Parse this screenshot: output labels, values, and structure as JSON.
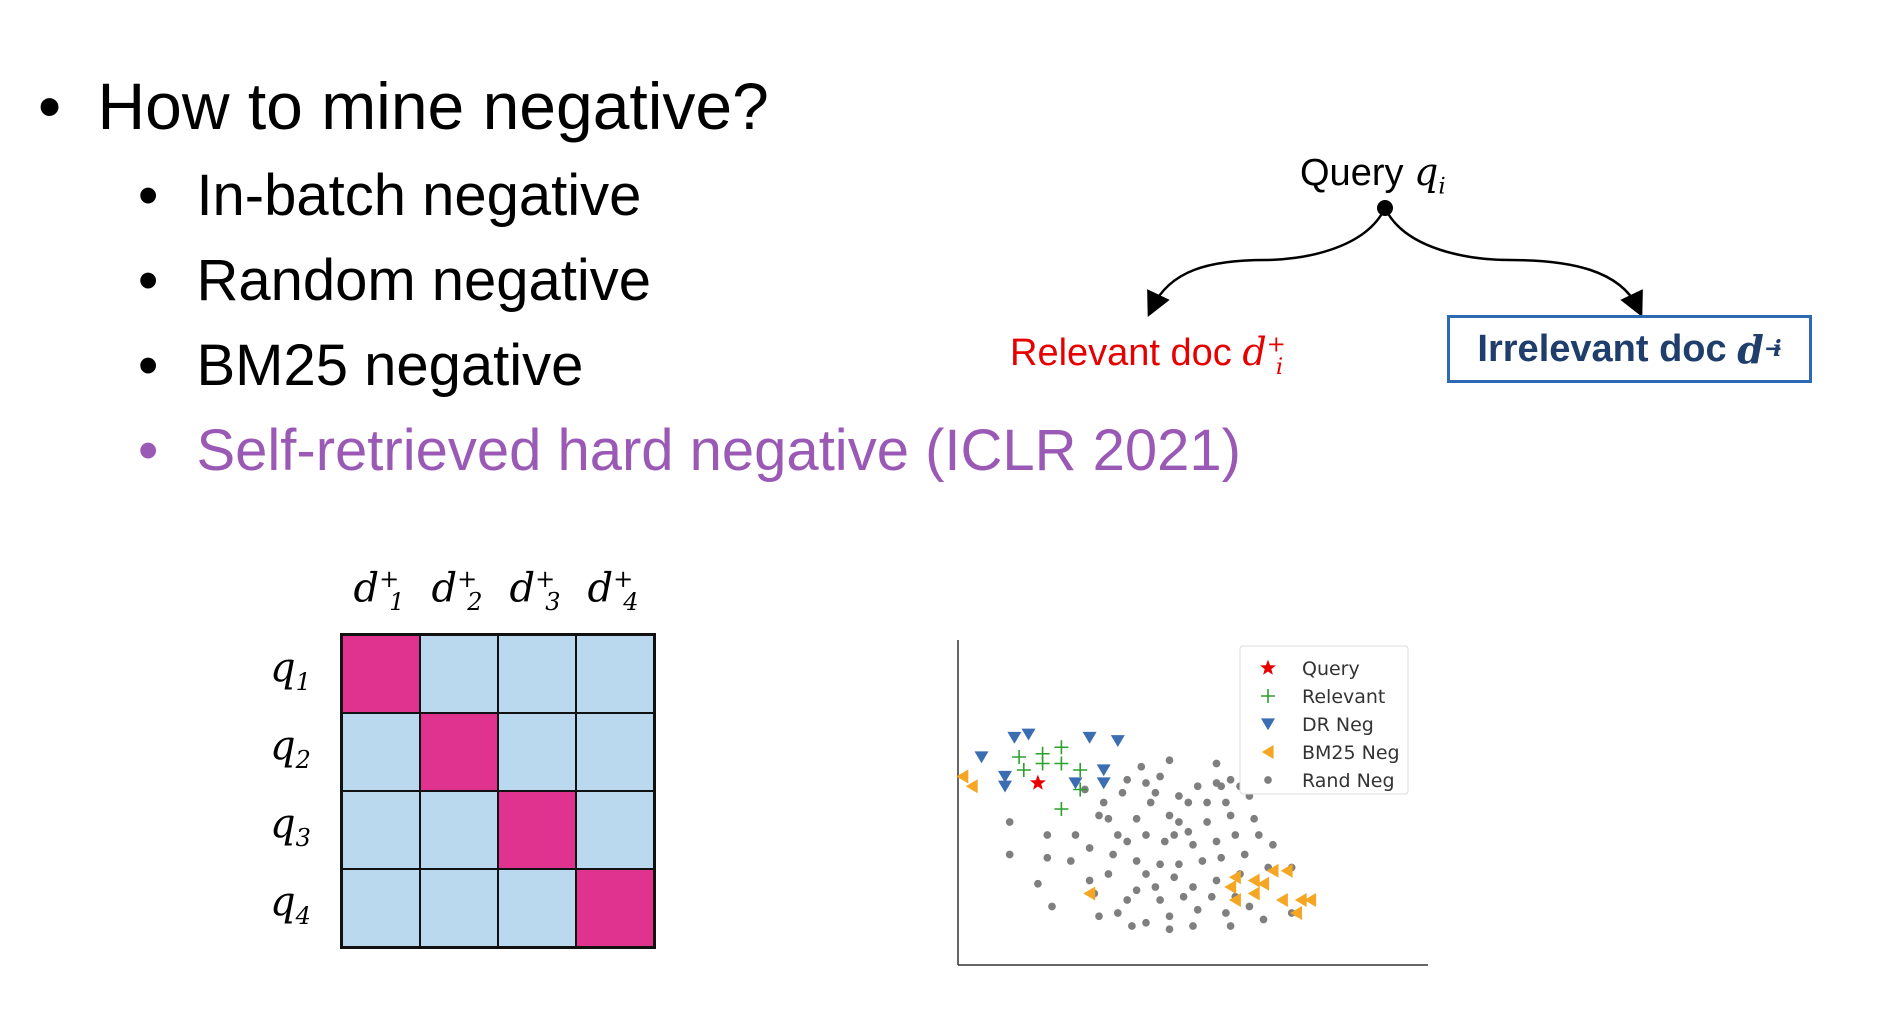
{
  "bullets": {
    "marker": "•",
    "main": "How to mine negative?",
    "sub": [
      {
        "text": "In-batch negative"
      },
      {
        "text": "Random negative"
      },
      {
        "text": "BM25 negative"
      },
      {
        "text": "Self-retrieved hard negative (ICLR 2021)"
      }
    ]
  },
  "colors": {
    "highlight": "#9b59b6",
    "relevant_red": "#e60000",
    "irrelevant_blue": "#1f3e6b",
    "box_border": "#2e6ab3",
    "matrix_pos": "#e0338f",
    "matrix_neg": "#bad9ef"
  },
  "diagram": {
    "query_label": "Query",
    "query_var": "q",
    "query_sub": "i",
    "relevant_label": "Relevant doc",
    "relevant_var": "d",
    "relevant_sup": "+",
    "relevant_sub": "i",
    "irrelevant_label": "Irrelevant doc",
    "irrelevant_var": "d",
    "irrelevant_sup": "−",
    "irrelevant_sub": "i"
  },
  "matrix": {
    "columns": [
      {
        "var": "d",
        "sup": "+",
        "sub": "1"
      },
      {
        "var": "d",
        "sup": "+",
        "sub": "2"
      },
      {
        "var": "d",
        "sup": "+",
        "sub": "3"
      },
      {
        "var": "d",
        "sup": "+",
        "sub": "4"
      }
    ],
    "rows": [
      {
        "var": "q",
        "sub": "1"
      },
      {
        "var": "q",
        "sub": "2"
      },
      {
        "var": "q",
        "sub": "3"
      },
      {
        "var": "q",
        "sub": "4"
      }
    ],
    "positive_cells": [
      [
        0,
        0
      ],
      [
        1,
        1
      ],
      [
        2,
        2
      ],
      [
        3,
        3
      ]
    ]
  },
  "chart_data": {
    "type": "scatter",
    "title": "",
    "xlabel": "",
    "ylabel": "",
    "xlim": [
      0,
      100
    ],
    "ylim": [
      0,
      100
    ],
    "grid": false,
    "ticks": false,
    "legend_position": "top-right",
    "series": [
      {
        "name": "Query",
        "marker": "star",
        "color": "#e60000",
        "points": [
          [
            17,
            56
          ]
        ]
      },
      {
        "name": "Relevant",
        "marker": "plus",
        "color": "#2ca02c",
        "points": [
          [
            13,
            64
          ],
          [
            18,
            65
          ],
          [
            22,
            67
          ],
          [
            18,
            62
          ],
          [
            22,
            62
          ],
          [
            26,
            60
          ],
          [
            26,
            54
          ],
          [
            22,
            48
          ],
          [
            14,
            60
          ]
        ]
      },
      {
        "name": "DR Neg",
        "marker": "tri-down",
        "color": "#3b6db3",
        "points": [
          [
            5,
            64
          ],
          [
            12,
            70
          ],
          [
            15,
            71
          ],
          [
            10,
            58
          ],
          [
            10,
            55
          ],
          [
            28,
            70
          ],
          [
            34,
            69
          ],
          [
            31,
            60
          ],
          [
            31,
            56
          ],
          [
            25,
            56
          ]
        ]
      },
      {
        "name": "BM25 Neg",
        "marker": "tri-left",
        "color": "#f5a623",
        "points": [
          [
            1,
            58
          ],
          [
            3,
            55
          ],
          [
            28,
            22
          ],
          [
            58,
            24
          ],
          [
            59,
            20
          ],
          [
            59,
            27
          ],
          [
            63,
            22
          ],
          [
            63,
            26
          ],
          [
            65,
            25
          ],
          [
            67,
            29
          ],
          [
            70,
            29
          ],
          [
            69,
            20
          ],
          [
            73,
            20
          ],
          [
            72,
            16
          ],
          [
            75,
            20
          ]
        ]
      },
      {
        "name": "Rand Neg",
        "marker": "circle",
        "color": "#7f7f7f",
        "points": [
          [
            39,
            61
          ],
          [
            45,
            63
          ],
          [
            55,
            62
          ],
          [
            11,
            44
          ],
          [
            30,
            46
          ],
          [
            38,
            45
          ],
          [
            47,
            44
          ],
          [
            53,
            44
          ],
          [
            58,
            46
          ],
          [
            63,
            45
          ],
          [
            41,
            50
          ],
          [
            49,
            50
          ],
          [
            51,
            55
          ],
          [
            56,
            55
          ],
          [
            34,
            40
          ],
          [
            36,
            38
          ],
          [
            40,
            40
          ],
          [
            44,
            38
          ],
          [
            46,
            40
          ],
          [
            50,
            37
          ],
          [
            55,
            38
          ],
          [
            59,
            40
          ],
          [
            28,
            36
          ],
          [
            25,
            40
          ],
          [
            33,
            34
          ],
          [
            38,
            32
          ],
          [
            43,
            31
          ],
          [
            47,
            31
          ],
          [
            52,
            32
          ],
          [
            56,
            33
          ],
          [
            61,
            34
          ],
          [
            11,
            34
          ],
          [
            19,
            33
          ],
          [
            24,
            32
          ],
          [
            32,
            28
          ],
          [
            40,
            28
          ],
          [
            46,
            27
          ],
          [
            50,
            24
          ],
          [
            55,
            26
          ],
          [
            60,
            28
          ],
          [
            17,
            25
          ],
          [
            29,
            22
          ],
          [
            36,
            20
          ],
          [
            43,
            20
          ],
          [
            48,
            21
          ],
          [
            54,
            21
          ],
          [
            59,
            21
          ],
          [
            66,
            30
          ],
          [
            71,
            30
          ],
          [
            34,
            16
          ],
          [
            40,
            13
          ],
          [
            45,
            15
          ],
          [
            51,
            17
          ],
          [
            57,
            16
          ],
          [
            20,
            18
          ],
          [
            30,
            15
          ],
          [
            37,
            12
          ],
          [
            45,
            11
          ],
          [
            50,
            12
          ],
          [
            58,
            12
          ],
          [
            65,
            14
          ],
          [
            71,
            16
          ],
          [
            62,
            18
          ],
          [
            43,
            58
          ],
          [
            36,
            57
          ],
          [
            40,
            56
          ],
          [
            60,
            55
          ],
          [
            47,
            52
          ],
          [
            53,
            50
          ],
          [
            35,
            53
          ],
          [
            42,
            53
          ],
          [
            31,
            50
          ],
          [
            45,
            46
          ],
          [
            57,
            50
          ],
          [
            62,
            52
          ],
          [
            64,
            40
          ],
          [
            67,
            37
          ],
          [
            38,
            23
          ],
          [
            42,
            24
          ],
          [
            32,
            45
          ],
          [
            49,
            41
          ],
          [
            27,
            54
          ],
          [
            28,
            26
          ],
          [
            19,
            40
          ],
          [
            55,
            56
          ],
          [
            58,
            57
          ]
        ]
      }
    ]
  }
}
